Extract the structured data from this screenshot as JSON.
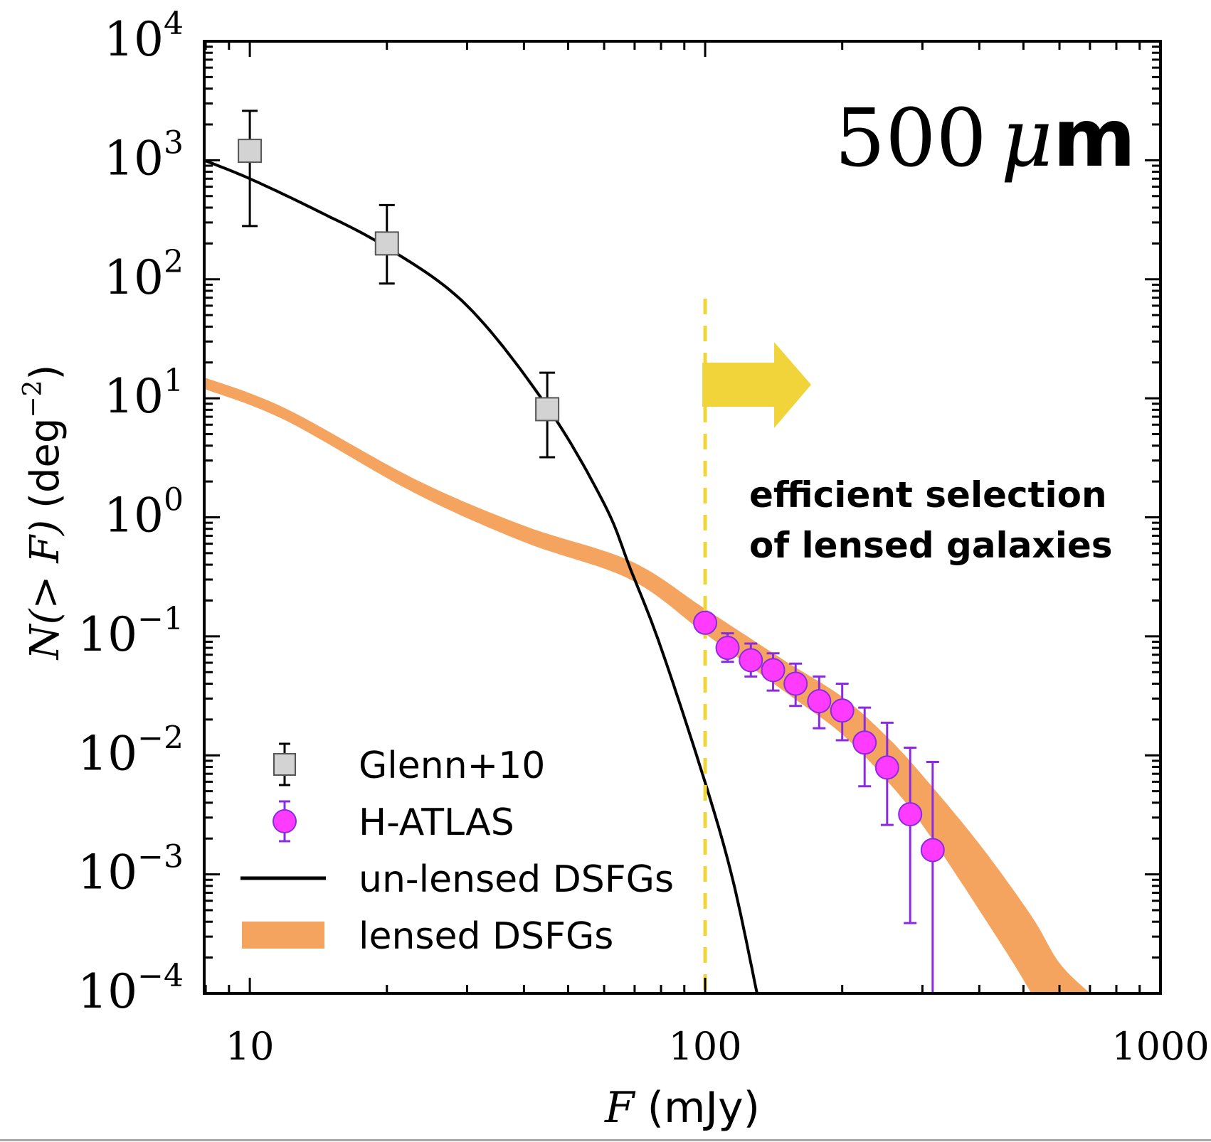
{
  "chart_data": {
    "type": "scatter",
    "title": "500 μm",
    "title_parts": {
      "number": "500",
      "unit_mu": "μ",
      "unit_m": "m"
    },
    "xlabel": {
      "var": "F",
      "unit": "(mJy)"
    },
    "ylabel": {
      "var": "N(> F)",
      "unit": "(deg",
      "exp": "−2",
      "close": ")"
    },
    "xscale": "log",
    "yscale": "log",
    "xlim": [
      7.94,
      1000
    ],
    "ylim": [
      0.0001,
      10000
    ],
    "grid": false,
    "legend_position": "lower-left",
    "x_ticks": [
      {
        "value": 10,
        "label": "10"
      },
      {
        "value": 100,
        "label": "100"
      },
      {
        "value": 1000,
        "label": "1000"
      }
    ],
    "y_ticks": [
      {
        "value": 10000,
        "base": "10",
        "exp": "4"
      },
      {
        "value": 1000,
        "base": "10",
        "exp": "3"
      },
      {
        "value": 100,
        "base": "10",
        "exp": "2"
      },
      {
        "value": 10,
        "base": "10",
        "exp": "1"
      },
      {
        "value": 1,
        "base": "10",
        "exp": "0"
      },
      {
        "value": 0.1,
        "base": "10",
        "exp": "−1"
      },
      {
        "value": 0.01,
        "base": "10",
        "exp": "−2"
      },
      {
        "value": 0.001,
        "base": "10",
        "exp": "−3"
      },
      {
        "value": 0.0001,
        "base": "10",
        "exp": "−4"
      }
    ],
    "series": [
      {
        "name": "Glenn+10",
        "kind": "errorbar-square",
        "color": "#d3d3d3",
        "edge": "#555555",
        "points": [
          {
            "x": 10,
            "y": 1200,
            "ylo": 280,
            "yhi": 2600
          },
          {
            "x": 20,
            "y": 200,
            "ylo": 92,
            "yhi": 420
          },
          {
            "x": 45,
            "y": 8.1,
            "ylo": 3.2,
            "yhi": 16.4
          }
        ]
      },
      {
        "name": "H-ATLAS",
        "kind": "errorbar-circle",
        "color": "#ff3bff",
        "edge": "#8a2be2",
        "points": [
          {
            "x": 100,
            "y": 0.13,
            "ylo": 0.13,
            "yhi": 0.13
          },
          {
            "x": 112,
            "y": 0.08,
            "ylo": 0.061,
            "yhi": 0.106
          },
          {
            "x": 126,
            "y": 0.063,
            "ylo": 0.046,
            "yhi": 0.087
          },
          {
            "x": 141,
            "y": 0.052,
            "ylo": 0.035,
            "yhi": 0.072
          },
          {
            "x": 158,
            "y": 0.04,
            "ylo": 0.026,
            "yhi": 0.059
          },
          {
            "x": 178,
            "y": 0.0285,
            "ylo": 0.0169,
            "yhi": 0.046
          },
          {
            "x": 200,
            "y": 0.0238,
            "ylo": 0.0134,
            "yhi": 0.04
          },
          {
            "x": 224,
            "y": 0.0128,
            "ylo": 0.0055,
            "yhi": 0.0252
          },
          {
            "x": 251,
            "y": 0.0079,
            "ylo": 0.0026,
            "yhi": 0.0188
          },
          {
            "x": 282,
            "y": 0.0032,
            "ylo": 0.00039,
            "yhi": 0.0116
          },
          {
            "x": 316,
            "y": 0.0016,
            "ylo": 5e-05,
            "yhi": 0.0088
          }
        ]
      },
      {
        "name": "un-lensed DSFGs",
        "kind": "line",
        "color": "#000000",
        "x": [
          7.94,
          10,
          14,
          20,
          30,
          45,
          60,
          68.5,
          80,
          100,
          115,
          130
        ],
        "y": [
          1000,
          700,
          380,
          185,
          60,
          8.5,
          1.3,
          0.37,
          0.08,
          0.0059,
          0.0009,
          0.0001
        ]
      },
      {
        "name": "lensed DSFGs",
        "kind": "band",
        "color": "#f5a460",
        "x": [
          7.94,
          12,
          23,
          40,
          68.5,
          100,
          150,
          200,
          250,
          300,
          400,
          520,
          600,
          700
        ],
        "ylo": [
          12.0,
          6.5,
          1.6,
          0.62,
          0.3,
          0.105,
          0.034,
          0.015,
          0.0062,
          0.0026,
          0.0005,
          0.0001,
          3e-05,
          8e-06
        ],
        "yhi": [
          15.0,
          8.2,
          2.1,
          0.85,
          0.43,
          0.17,
          0.062,
          0.031,
          0.0145,
          0.0068,
          0.0018,
          0.00045,
          0.00018,
          0.0001
        ]
      }
    ],
    "annotations": {
      "threshold_line": {
        "x": 100,
        "color": "#f0d43a",
        "style": "dashed"
      },
      "arrow": {
        "color": "#f0d43a",
        "direction": "right",
        "y": 13
      },
      "text_lines": [
        "efficient selection",
        "of lensed galaxies"
      ]
    },
    "legend": [
      {
        "label": "Glenn+10",
        "marker": "square"
      },
      {
        "label": "H-ATLAS",
        "marker": "circle"
      },
      {
        "label": "un-lensed DSFGs",
        "marker": "line"
      },
      {
        "label": "lensed DSFGs",
        "marker": "band"
      }
    ]
  }
}
